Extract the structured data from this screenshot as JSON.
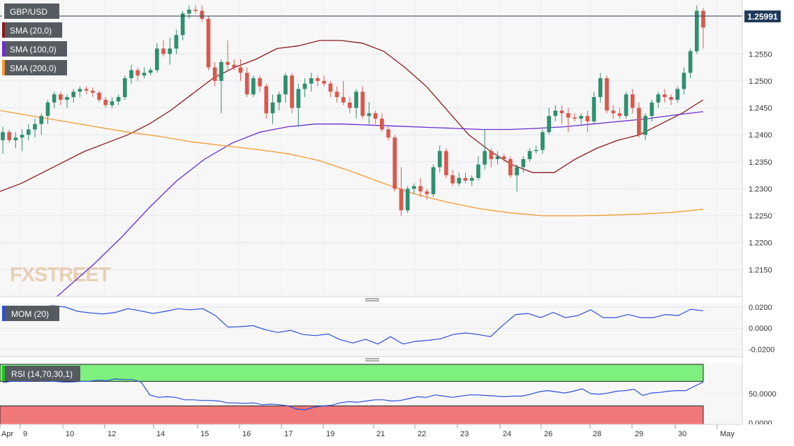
{
  "colors": {
    "bull": "#2f8f6f",
    "bear": "#d9594c",
    "sma20": "#8b1a1a",
    "sma100": "#6a2bd0",
    "sma200": "#f29a2e",
    "mom": "#2c4fd8",
    "rsi": "#2c4fd8",
    "rsi_over": "#7ef07e",
    "rsi_under": "#f07878",
    "price_tag": "#1f3a5a",
    "grid": "#e3e6ea",
    "panel_bg": "#f7f7f8"
  },
  "watermark": "FXSTREET",
  "current_price": "1.25991",
  "labels": {
    "symbol": "GBP/USD",
    "sma20": "SMA (20,0)",
    "sma100": "SMA (100,0)",
    "sma200": "SMA (200,0)",
    "mom": "MOM (20)",
    "rsi": "RSI (14,70,30,1)"
  },
  "chart_data": [
    {
      "type": "candlestick",
      "title": "GBP/USD",
      "ylim": [
        1.21,
        1.265
      ],
      "yticks": [
        "1.2550",
        "1.2500",
        "1.2450",
        "1.2400",
        "1.2350",
        "1.2300",
        "1.2250",
        "1.2200",
        "1.2150"
      ],
      "xticks": [
        "Apr",
        "9",
        "10",
        "12",
        "14",
        "15",
        "16",
        "17",
        "19",
        "21",
        "22",
        "23",
        "24",
        "26",
        "28",
        "29",
        "30",
        "May"
      ],
      "candles": [
        [
          1.239,
          1.2415,
          1.2365,
          1.2405
        ],
        [
          1.2405,
          1.241,
          1.2385,
          1.239
        ],
        [
          1.239,
          1.2405,
          1.2375,
          1.2395
        ],
        [
          1.2395,
          1.241,
          1.237,
          1.24
        ],
        [
          1.24,
          1.242,
          1.239,
          1.241
        ],
        [
          1.241,
          1.243,
          1.2395,
          1.242
        ],
        [
          1.242,
          1.244,
          1.24,
          1.2435
        ],
        [
          1.2435,
          1.2465,
          1.242,
          1.246
        ],
        [
          1.246,
          1.248,
          1.245,
          1.2475
        ],
        [
          1.2475,
          1.248,
          1.2455,
          1.2465
        ],
        [
          1.2465,
          1.2475,
          1.245,
          1.247
        ],
        [
          1.247,
          1.2485,
          1.246,
          1.248
        ],
        [
          1.248,
          1.249,
          1.247,
          1.2485
        ],
        [
          1.2485,
          1.249,
          1.2475,
          1.2482
        ],
        [
          1.2482,
          1.2488,
          1.247,
          1.2478
        ],
        [
          1.2478,
          1.2482,
          1.246,
          1.2465
        ],
        [
          1.2465,
          1.247,
          1.245,
          1.2455
        ],
        [
          1.2455,
          1.247,
          1.245,
          1.2462
        ],
        [
          1.2462,
          1.2475,
          1.2455,
          1.247
        ],
        [
          1.247,
          1.251,
          1.2465,
          1.2505
        ],
        [
          1.2505,
          1.253,
          1.2495,
          1.252
        ],
        [
          1.252,
          1.2525,
          1.25,
          1.251
        ],
        [
          1.251,
          1.2525,
          1.2505,
          1.2515
        ],
        [
          1.2515,
          1.2525,
          1.251,
          1.252
        ],
        [
          1.252,
          1.257,
          1.2515,
          1.256
        ],
        [
          1.256,
          1.2575,
          1.2545,
          1.255
        ],
        [
          1.255,
          1.258,
          1.253,
          1.256
        ],
        [
          1.256,
          1.2595,
          1.255,
          1.2585
        ],
        [
          1.2585,
          1.263,
          1.2575,
          1.2625
        ],
        [
          1.2625,
          1.264,
          1.2615,
          1.2632
        ],
        [
          1.2632,
          1.264,
          1.2625,
          1.263
        ],
        [
          1.263,
          1.264,
          1.261,
          1.2615
        ],
        [
          1.2615,
          1.262,
          1.252,
          1.2525
        ],
        [
          1.2525,
          1.2535,
          1.249,
          1.25
        ],
        [
          1.25,
          1.254,
          1.244,
          1.2535
        ],
        [
          1.2535,
          1.2575,
          1.252,
          1.253
        ],
        [
          1.253,
          1.254,
          1.252,
          1.2525
        ],
        [
          1.2525,
          1.254,
          1.25,
          1.2515
        ],
        [
          1.2515,
          1.2525,
          1.247,
          1.2475
        ],
        [
          1.2475,
          1.251,
          1.247,
          1.2505
        ],
        [
          1.2505,
          1.251,
          1.248,
          1.249
        ],
        [
          1.249,
          1.2495,
          1.243,
          1.244
        ],
        [
          1.244,
          1.2475,
          1.242,
          1.246
        ],
        [
          1.246,
          1.248,
          1.2445,
          1.2475
        ],
        [
          1.2475,
          1.2515,
          1.246,
          1.251
        ],
        [
          1.251,
          1.2515,
          1.244,
          1.245
        ],
        [
          1.245,
          1.2495,
          1.2415,
          1.2485
        ],
        [
          1.2485,
          1.2505,
          1.247,
          1.2495
        ],
        [
          1.2495,
          1.2515,
          1.248,
          1.2505
        ],
        [
          1.2505,
          1.251,
          1.249,
          1.25
        ],
        [
          1.25,
          1.251,
          1.249,
          1.2495
        ],
        [
          1.2495,
          1.25,
          1.247,
          1.248
        ],
        [
          1.248,
          1.249,
          1.246,
          1.247
        ],
        [
          1.247,
          1.25,
          1.2455,
          1.246
        ],
        [
          1.246,
          1.247,
          1.244,
          1.245
        ],
        [
          1.245,
          1.2485,
          1.243,
          1.248
        ],
        [
          1.248,
          1.249,
          1.243,
          1.2435
        ],
        [
          1.2435,
          1.246,
          1.242,
          1.244
        ],
        [
          1.244,
          1.2445,
          1.242,
          1.243
        ],
        [
          1.243,
          1.244,
          1.2405,
          1.241
        ],
        [
          1.241,
          1.2415,
          1.239,
          1.2395
        ],
        [
          1.2395,
          1.24,
          1.2295,
          1.23
        ],
        [
          1.23,
          1.234,
          1.225,
          1.226
        ],
        [
          1.226,
          1.2305,
          1.2255,
          1.23
        ],
        [
          1.23,
          1.231,
          1.229,
          1.2305
        ],
        [
          1.2305,
          1.232,
          1.2285,
          1.2295
        ],
        [
          1.2295,
          1.23,
          1.228,
          1.229
        ],
        [
          1.229,
          1.2345,
          1.2285,
          1.234
        ],
        [
          1.234,
          1.238,
          1.233,
          1.237
        ],
        [
          1.237,
          1.2375,
          1.232,
          1.2325
        ],
        [
          1.2325,
          1.2335,
          1.2305,
          1.231
        ],
        [
          1.231,
          1.233,
          1.2305,
          1.232
        ],
        [
          1.232,
          1.233,
          1.231,
          1.2315
        ],
        [
          1.2315,
          1.2325,
          1.2305,
          1.232
        ],
        [
          1.232,
          1.236,
          1.2315,
          1.2345
        ],
        [
          1.2345,
          1.241,
          1.2335,
          1.237
        ],
        [
          1.237,
          1.2375,
          1.234,
          1.2355
        ],
        [
          1.2355,
          1.237,
          1.2345,
          1.236
        ],
        [
          1.236,
          1.2365,
          1.235,
          1.2355
        ],
        [
          1.2355,
          1.236,
          1.232,
          1.2325
        ],
        [
          1.2325,
          1.2345,
          1.2295,
          1.234
        ],
        [
          1.234,
          1.236,
          1.233,
          1.2355
        ],
        [
          1.2355,
          1.2375,
          1.235,
          1.237
        ],
        [
          1.237,
          1.238,
          1.2365,
          1.2372
        ],
        [
          1.2372,
          1.241,
          1.2365,
          1.2405
        ],
        [
          1.2405,
          1.245,
          1.24,
          1.2435
        ],
        [
          1.2435,
          1.2455,
          1.2425,
          1.2445
        ],
        [
          1.2445,
          1.2455,
          1.242,
          1.244
        ],
        [
          1.244,
          1.245,
          1.2405,
          1.2432
        ],
        [
          1.2432,
          1.244,
          1.2425,
          1.243
        ],
        [
          1.243,
          1.244,
          1.242,
          1.2435
        ],
        [
          1.2435,
          1.2445,
          1.2405,
          1.2425
        ],
        [
          1.2425,
          1.248,
          1.242,
          1.247
        ],
        [
          1.247,
          1.2515,
          1.246,
          1.2505
        ],
        [
          1.2505,
          1.251,
          1.244,
          1.2445
        ],
        [
          1.2445,
          1.2455,
          1.243,
          1.244
        ],
        [
          1.244,
          1.245,
          1.243,
          1.2435
        ],
        [
          1.2435,
          1.248,
          1.243,
          1.2475
        ],
        [
          1.2475,
          1.2485,
          1.244,
          1.245
        ],
        [
          1.245,
          1.246,
          1.2395,
          1.24
        ],
        [
          1.24,
          1.244,
          1.239,
          1.2435
        ],
        [
          1.2435,
          1.2465,
          1.2425,
          1.246
        ],
        [
          1.246,
          1.248,
          1.245,
          1.2475
        ],
        [
          1.2475,
          1.2485,
          1.246,
          1.247
        ],
        [
          1.247,
          1.2475,
          1.2455,
          1.2465
        ],
        [
          1.2465,
          1.249,
          1.246,
          1.2485
        ],
        [
          1.2485,
          1.2525,
          1.2475,
          1.2515
        ],
        [
          1.2515,
          1.256,
          1.2505,
          1.2555
        ],
        [
          1.2555,
          1.264,
          1.255,
          1.263
        ],
        [
          1.263,
          1.2635,
          1.256,
          1.2599
        ]
      ],
      "sma20": [
        1.2295,
        1.231,
        1.233,
        1.235,
        1.237,
        1.2385,
        1.24,
        1.242,
        1.2445,
        1.2475,
        1.2505,
        1.2525,
        1.254,
        1.256,
        1.2565,
        1.2575,
        1.2575,
        1.257,
        1.2555,
        1.2525,
        1.249,
        1.2445,
        1.24,
        1.237,
        1.2345,
        1.233,
        1.233,
        1.2355,
        1.2375,
        1.239,
        1.24,
        1.242,
        1.244,
        1.2465
      ],
      "sma100": [
        1.207,
        1.2115,
        1.216,
        1.221,
        1.2265,
        1.2315,
        1.2355,
        1.2385,
        1.2405,
        1.2415,
        1.242,
        1.242,
        1.2418,
        1.2416,
        1.2414,
        1.2412,
        1.241,
        1.241,
        1.2412,
        1.2415,
        1.242,
        1.2425,
        1.243,
        1.2437,
        1.2443
      ],
      "sma200": [
        1.2445,
        1.2435,
        1.2425,
        1.2415,
        1.2405,
        1.2397,
        1.2387,
        1.238,
        1.2373,
        1.2365,
        1.2352,
        1.2332,
        1.231,
        1.229,
        1.2275,
        1.2263,
        1.2255,
        1.225,
        1.225,
        1.2251,
        1.2253,
        1.2256,
        1.2262
      ]
    },
    {
      "type": "line",
      "title": "MOM (20)",
      "series": [
        {
          "name": "MOM (20)",
          "values": [
            0.0165,
            0.0165,
            0.0175,
            0.02,
            0.0215,
            0.02,
            0.016,
            0.0145,
            0.0135,
            0.015,
            0.0185,
            0.0165,
            0.014,
            0.016,
            0.0185,
            0.0175,
            0.0185,
            0.012,
            0.001,
            0.0015,
            0.0025,
            -0.0015,
            -0.004,
            -0.002,
            -0.006,
            -0.007,
            -0.0055,
            -0.011,
            -0.014,
            -0.0105,
            -0.015,
            -0.008,
            -0.015,
            -0.0125,
            -0.0115,
            -0.01,
            -0.006,
            -0.0045,
            -0.006,
            -0.008,
            0.003,
            0.013,
            0.014,
            0.01,
            0.015,
            0.01,
            0.012,
            0.0175,
            0.01,
            0.01,
            0.013,
            0.01,
            0.01,
            0.013,
            0.012,
            0.018,
            0.0165
          ]
        }
      ],
      "ylim": [
        -0.027,
        0.024
      ],
      "yticks": [
        "0.0200",
        "0.0000",
        "-0.0200"
      ]
    },
    {
      "type": "line",
      "title": "RSI (14,70,30,1)",
      "series": [
        {
          "name": "RSI (14,70,30,1)",
          "values": [
            68,
            70,
            70,
            70,
            71,
            70,
            70,
            69,
            69,
            70,
            70,
            72,
            71,
            74,
            73,
            73,
            69,
            48,
            44,
            45,
            44,
            40,
            40,
            39,
            39,
            38,
            35,
            35,
            34,
            35,
            32,
            33,
            32,
            30,
            25,
            24,
            28,
            30,
            31,
            35,
            37,
            36,
            38,
            40,
            40,
            38,
            39,
            42,
            45,
            44,
            48,
            46,
            44,
            46,
            48,
            48,
            47,
            46,
            45,
            46,
            46,
            49,
            53,
            55,
            53,
            51,
            54,
            58,
            50,
            49,
            51,
            54,
            55,
            57,
            47,
            51,
            52,
            54,
            55,
            55,
            62,
            69
          ]
        }
      ],
      "ylim": [
        0,
        100
      ],
      "levels": [
        70,
        30
      ],
      "yticks": [
        "50.0000",
        "0.0000"
      ]
    }
  ]
}
